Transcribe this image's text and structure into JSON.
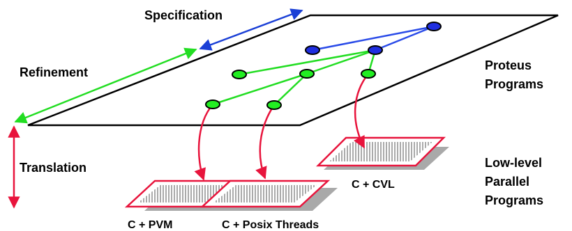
{
  "labels": {
    "specification": "Specification",
    "refinement": "Refinement",
    "translation": "Translation",
    "proteus_line1": "Proteus",
    "proteus_line2": "Programs",
    "lowlevel_line1": "Low-level",
    "lowlevel_line2": "Parallel",
    "lowlevel_line3": "Programs",
    "target_pvm": "C + PVM",
    "target_posix": "C + Posix Threads",
    "target_cvl": "C + CVL"
  },
  "colors": {
    "specification_arrow": "#1a3fd6",
    "refinement_arrow": "#22dd22",
    "translation_arrow": "#e8143c",
    "plane_outline": "#000000",
    "node_blue": "#1f2ee0",
    "node_green": "#22ee22",
    "tree_edge_blue": "#2a4be8",
    "tree_edge_green": "#22dd22",
    "mapping_arrow": "#e8143c",
    "slab_border": "#e8143c",
    "slab_shadow": "#a9a9a9"
  },
  "icons": {
    "node": "ellipse-node",
    "slab": "hatched-platform"
  }
}
